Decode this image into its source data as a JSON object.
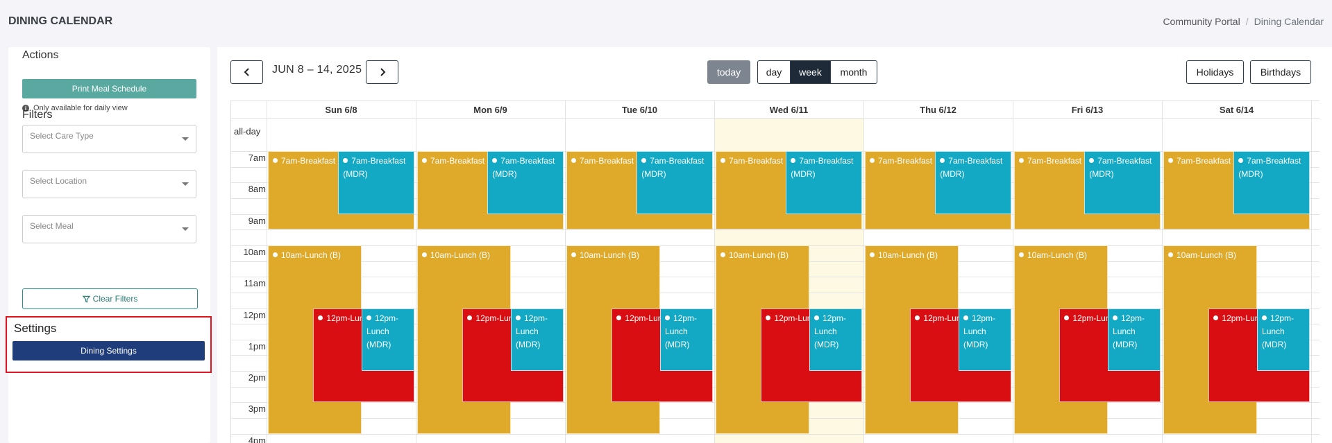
{
  "header": {
    "title": "DINING CALENDAR",
    "breadcrumb": [
      "Community Portal",
      "Dining Calendar"
    ]
  },
  "sidebar": {
    "actions_title": "Actions",
    "print_button": "Print Meal Schedule",
    "print_note": "Only available for daily view",
    "filters_title": "Filters",
    "filters": [
      {
        "placeholder": "Select Care Type"
      },
      {
        "placeholder": "Select Location"
      },
      {
        "placeholder": "Select Meal"
      }
    ],
    "clear_button": "Clear Filters",
    "settings_title": "Settings",
    "settings_button": "Dining Settings"
  },
  "toolbar": {
    "date_range": "JUN 8 – 14, 2025",
    "today": "today",
    "views": [
      "day",
      "week",
      "month"
    ],
    "active_view": "week",
    "right_buttons": [
      "Holidays",
      "Birthdays"
    ]
  },
  "calendar": {
    "days": [
      "Sun 6/8",
      "Mon 6/9",
      "Tue 6/10",
      "Wed 6/11",
      "Thu 6/12",
      "Fri 6/13",
      "Sat 6/14"
    ],
    "today_index": 3,
    "allday_label": "all-day",
    "times": [
      "7am",
      "8am",
      "9am",
      "10am",
      "11am",
      "12pm",
      "1pm",
      "2pm",
      "3pm",
      "4pm"
    ],
    "events": [
      {
        "title": "7am-Breakfast",
        "color": "#dfa92a"
      },
      {
        "title": "7am-Breakfast (MDR)",
        "color": "#13a9c5"
      },
      {
        "title": "10am-Lunch (B)",
        "color": "#dfa92a"
      },
      {
        "title": "12pm-Lunch",
        "color": "#d80e12"
      },
      {
        "title": "12pm-Lunch (MDR)",
        "color": "#13a9c5"
      }
    ]
  },
  "colors": {
    "accent_teal": "#5aa9a0",
    "settings_button": "#1f3d7a",
    "highlight_border": "#e0141e"
  }
}
